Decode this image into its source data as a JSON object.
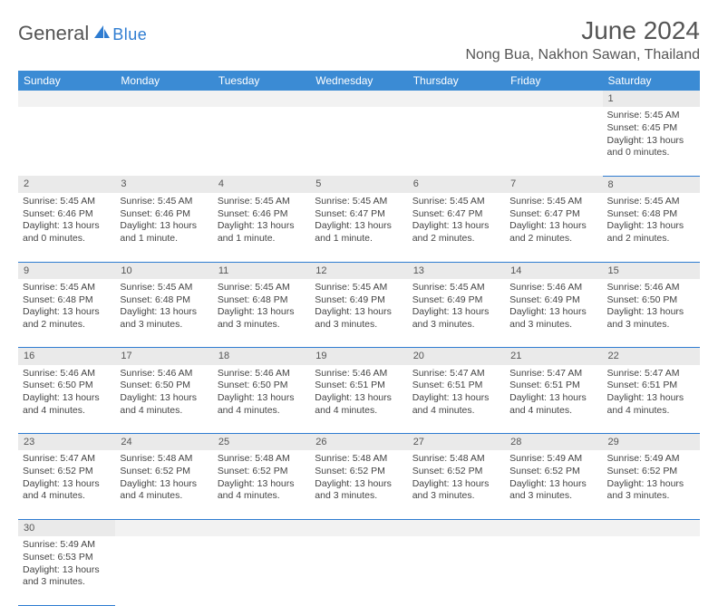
{
  "logo": {
    "general": "General",
    "blue": "Blue"
  },
  "title": "June 2024",
  "location": "Nong Bua, Nakhon Sawan, Thailand",
  "colors": {
    "header_bg": "#3b8bd4",
    "header_text": "#ffffff",
    "daynum_bg": "#eaeaea",
    "border": "#2e7cd1",
    "logo_blue": "#2e7cd1",
    "text": "#444444"
  },
  "weekdays": [
    "Sunday",
    "Monday",
    "Tuesday",
    "Wednesday",
    "Thursday",
    "Friday",
    "Saturday"
  ],
  "weeks": [
    {
      "nums": [
        "",
        "",
        "",
        "",
        "",
        "",
        "1"
      ],
      "cells": [
        "",
        "",
        "",
        "",
        "",
        "",
        "Sunrise: 5:45 AM\nSunset: 6:45 PM\nDaylight: 13 hours and 0 minutes."
      ]
    },
    {
      "nums": [
        "2",
        "3",
        "4",
        "5",
        "6",
        "7",
        "8"
      ],
      "cells": [
        "Sunrise: 5:45 AM\nSunset: 6:46 PM\nDaylight: 13 hours and 0 minutes.",
        "Sunrise: 5:45 AM\nSunset: 6:46 PM\nDaylight: 13 hours and 1 minute.",
        "Sunrise: 5:45 AM\nSunset: 6:46 PM\nDaylight: 13 hours and 1 minute.",
        "Sunrise: 5:45 AM\nSunset: 6:47 PM\nDaylight: 13 hours and 1 minute.",
        "Sunrise: 5:45 AM\nSunset: 6:47 PM\nDaylight: 13 hours and 2 minutes.",
        "Sunrise: 5:45 AM\nSunset: 6:47 PM\nDaylight: 13 hours and 2 minutes.",
        "Sunrise: 5:45 AM\nSunset: 6:48 PM\nDaylight: 13 hours and 2 minutes."
      ]
    },
    {
      "nums": [
        "9",
        "10",
        "11",
        "12",
        "13",
        "14",
        "15"
      ],
      "cells": [
        "Sunrise: 5:45 AM\nSunset: 6:48 PM\nDaylight: 13 hours and 2 minutes.",
        "Sunrise: 5:45 AM\nSunset: 6:48 PM\nDaylight: 13 hours and 3 minutes.",
        "Sunrise: 5:45 AM\nSunset: 6:48 PM\nDaylight: 13 hours and 3 minutes.",
        "Sunrise: 5:45 AM\nSunset: 6:49 PM\nDaylight: 13 hours and 3 minutes.",
        "Sunrise: 5:45 AM\nSunset: 6:49 PM\nDaylight: 13 hours and 3 minutes.",
        "Sunrise: 5:46 AM\nSunset: 6:49 PM\nDaylight: 13 hours and 3 minutes.",
        "Sunrise: 5:46 AM\nSunset: 6:50 PM\nDaylight: 13 hours and 3 minutes."
      ]
    },
    {
      "nums": [
        "16",
        "17",
        "18",
        "19",
        "20",
        "21",
        "22"
      ],
      "cells": [
        "Sunrise: 5:46 AM\nSunset: 6:50 PM\nDaylight: 13 hours and 4 minutes.",
        "Sunrise: 5:46 AM\nSunset: 6:50 PM\nDaylight: 13 hours and 4 minutes.",
        "Sunrise: 5:46 AM\nSunset: 6:50 PM\nDaylight: 13 hours and 4 minutes.",
        "Sunrise: 5:46 AM\nSunset: 6:51 PM\nDaylight: 13 hours and 4 minutes.",
        "Sunrise: 5:47 AM\nSunset: 6:51 PM\nDaylight: 13 hours and 4 minutes.",
        "Sunrise: 5:47 AM\nSunset: 6:51 PM\nDaylight: 13 hours and 4 minutes.",
        "Sunrise: 5:47 AM\nSunset: 6:51 PM\nDaylight: 13 hours and 4 minutes."
      ]
    },
    {
      "nums": [
        "23",
        "24",
        "25",
        "26",
        "27",
        "28",
        "29"
      ],
      "cells": [
        "Sunrise: 5:47 AM\nSunset: 6:52 PM\nDaylight: 13 hours and 4 minutes.",
        "Sunrise: 5:48 AM\nSunset: 6:52 PM\nDaylight: 13 hours and 4 minutes.",
        "Sunrise: 5:48 AM\nSunset: 6:52 PM\nDaylight: 13 hours and 4 minutes.",
        "Sunrise: 5:48 AM\nSunset: 6:52 PM\nDaylight: 13 hours and 3 minutes.",
        "Sunrise: 5:48 AM\nSunset: 6:52 PM\nDaylight: 13 hours and 3 minutes.",
        "Sunrise: 5:49 AM\nSunset: 6:52 PM\nDaylight: 13 hours and 3 minutes.",
        "Sunrise: 5:49 AM\nSunset: 6:52 PM\nDaylight: 13 hours and 3 minutes."
      ]
    },
    {
      "nums": [
        "30",
        "",
        "",
        "",
        "",
        "",
        ""
      ],
      "cells": [
        "Sunrise: 5:49 AM\nSunset: 6:53 PM\nDaylight: 13 hours and 3 minutes.",
        "",
        "",
        "",
        "",
        "",
        ""
      ]
    }
  ]
}
